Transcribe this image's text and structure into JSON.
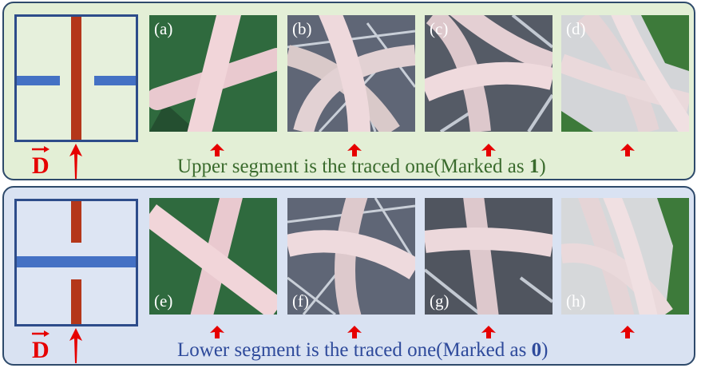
{
  "top_panel": {
    "labels": [
      "(a)",
      "(b)",
      "(c)",
      "(d)"
    ],
    "caption_prefix": "Upper segment is the traced one(Marked as ",
    "caption_mark": "1",
    "caption_suffix": ")"
  },
  "bottom_panel": {
    "labels": [
      "(e)",
      "(f)",
      "(g)",
      "(h)"
    ],
    "caption_prefix": "Lower segment is the traced one(Marked as ",
    "caption_mark": "0",
    "caption_suffix": ")"
  },
  "direction_label": "D",
  "colors": {
    "traced_segment": "#b4371a",
    "crossing_segment": "#4471c4",
    "arrow": "#e60000",
    "top_caption": "#3a6b2d",
    "bottom_caption": "#2e4a9b"
  }
}
